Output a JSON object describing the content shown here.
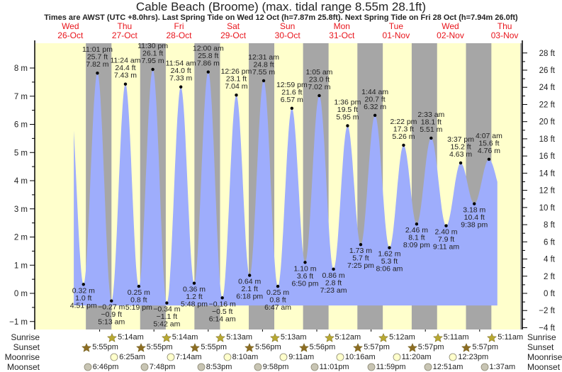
{
  "header": {
    "title": "Cable Beach (Broome) (max. tidal range 8.55m 28.1ft)",
    "subtitle": "Times are AWST (UTC +8.0hrs). Last Spring Tide on Wed 12 Oct (h=7.87m 25.8ft). Next Spring Tide on Fri 28 Oct (h=7.94m 26.0ft)"
  },
  "days": [
    {
      "dow": "Wed",
      "date": "26-Oct"
    },
    {
      "dow": "Thu",
      "date": "27-Oct"
    },
    {
      "dow": "Fri",
      "date": "28-Oct"
    },
    {
      "dow": "Sat",
      "date": "29-Oct"
    },
    {
      "dow": "Sun",
      "date": "30-Oct"
    },
    {
      "dow": "Mon",
      "date": "31-Oct"
    },
    {
      "dow": "Tue",
      "date": "01-Nov"
    },
    {
      "dow": "Wed",
      "date": "02-Nov"
    },
    {
      "dow": "Thu",
      "date": "03-Nov"
    }
  ],
  "colors": {
    "day": "#ffffcc",
    "night": "#a6a6a6",
    "water": "#9eadfc",
    "day_label": "#e8141b",
    "sunrise": "#b7a832",
    "sunset": "#8c6d23",
    "moonrise": "#ffffcc",
    "moonset": "#c8c5b4"
  },
  "chart_data": {
    "type": "area",
    "title": "Cable Beach (Broome) (max. tidal range 8.55m 28.1ft)",
    "ylabel_left": "m",
    "ylabel_right": "ft",
    "ylim_m": [
      -1.3,
      8.9
    ],
    "yticks_m": [
      "-1 m",
      "0 m",
      "1 m",
      "2 m",
      "3 m",
      "4 m",
      "5 m",
      "6 m",
      "7 m",
      "8 m"
    ],
    "yticks_ft": [
      "-4 ft",
      "-2 ft",
      "0 ft",
      "2 ft",
      "4 ft",
      "6 ft",
      "8 ft",
      "10 ft",
      "12 ft",
      "14 ft",
      "16 ft",
      "18 ft",
      "20 ft",
      "22 ft",
      "24 ft",
      "26 ft",
      "28 ft"
    ],
    "grid": false,
    "extremes": [
      {
        "day": 0,
        "time": "4:51 pm",
        "m": "0.32 m",
        "ft": "1.0 ft",
        "h": 0.32,
        "t": 0.7021,
        "type": "low"
      },
      {
        "day": 0,
        "time": "11:01 pm",
        "m": "7.82 m",
        "ft": "25.7 ft",
        "h": 7.82,
        "t": 0.959,
        "type": "high"
      },
      {
        "day": 1,
        "time": "5:13 am",
        "m": "-0.27 m",
        "ft": "-0.9 ft",
        "h": -0.27,
        "t": 1.2174,
        "type": "low"
      },
      {
        "day": 1,
        "time": "11:24 am",
        "m": "7.43 m",
        "ft": "24.4 ft",
        "h": 7.43,
        "t": 1.475,
        "type": "high"
      },
      {
        "day": 1,
        "time": "5:19 pm",
        "m": "0.25 m",
        "ft": "0.8 ft",
        "h": 0.25,
        "t": 1.7215,
        "type": "low"
      },
      {
        "day": 1,
        "time": "11:30 pm",
        "m": "7.95 m",
        "ft": "26.1 ft",
        "h": 7.95,
        "t": 1.9792,
        "type": "high"
      },
      {
        "day": 2,
        "time": "5:42 am",
        "m": "-0.34 m",
        "ft": "-1.1 ft",
        "h": -0.34,
        "t": 2.2375,
        "type": "low"
      },
      {
        "day": 2,
        "time": "11:54 am",
        "m": "7.33 m",
        "ft": "24.0 ft",
        "h": 7.33,
        "t": 2.4958,
        "type": "high"
      },
      {
        "day": 2,
        "time": "5:48 pm",
        "m": "0.36 m",
        "ft": "1.2 ft",
        "h": 0.36,
        "t": 2.7417,
        "type": "low"
      },
      {
        "day": 3,
        "time": "12:00 am",
        "m": "7.86 m",
        "ft": "25.8 ft",
        "h": 7.86,
        "t": 3.0,
        "type": "high"
      },
      {
        "day": 3,
        "time": "6:14 am",
        "m": "-0.16 m",
        "ft": "-0.5 ft",
        "h": -0.16,
        "t": 3.2597,
        "type": "low"
      },
      {
        "day": 3,
        "time": "12:26 pm",
        "m": "7.04 m",
        "ft": "23.1 ft",
        "h": 7.04,
        "t": 3.5181,
        "type": "high"
      },
      {
        "day": 3,
        "time": "6:18 pm",
        "m": "0.64 m",
        "ft": "2.1 ft",
        "h": 0.64,
        "t": 3.7625,
        "type": "low"
      },
      {
        "day": 4,
        "time": "12:31 am",
        "m": "7.55 m",
        "ft": "24.8 ft",
        "h": 7.55,
        "t": 4.0215,
        "type": "high"
      },
      {
        "day": 4,
        "time": "6:47 am",
        "m": "0.25 m",
        "ft": "0.8 ft",
        "h": 0.25,
        "t": 4.2826,
        "type": "low"
      },
      {
        "day": 4,
        "time": "12:59 pm",
        "m": "6.57 m",
        "ft": "21.6 ft",
        "h": 6.57,
        "t": 4.541,
        "type": "high"
      },
      {
        "day": 4,
        "time": "6:50 pm",
        "m": "1.10 m",
        "ft": "3.6 ft",
        "h": 1.1,
        "t": 4.7847,
        "type": "low"
      },
      {
        "day": 5,
        "time": "1:05 am",
        "m": "7.02 m",
        "ft": "23.0 ft",
        "h": 7.02,
        "t": 5.0451,
        "type": "high"
      },
      {
        "day": 5,
        "time": "7:23 am",
        "m": "0.86 m",
        "ft": "2.8 ft",
        "h": 0.86,
        "t": 5.3076,
        "type": "low"
      },
      {
        "day": 5,
        "time": "1:36 pm",
        "m": "5.95 m",
        "ft": "19.5 ft",
        "h": 5.95,
        "t": 5.5667,
        "type": "high"
      },
      {
        "day": 5,
        "time": "7:25 pm",
        "m": "1.73 m",
        "ft": "5.7 ft",
        "h": 1.73,
        "t": 5.809,
        "type": "low"
      },
      {
        "day": 6,
        "time": "1:44 am",
        "m": "6.32 m",
        "ft": "20.7 ft",
        "h": 6.32,
        "t": 6.0722,
        "type": "high"
      },
      {
        "day": 6,
        "time": "8:06 am",
        "m": "1.62 m",
        "ft": "5.3 ft",
        "h": 1.62,
        "t": 6.3375,
        "type": "low"
      },
      {
        "day": 6,
        "time": "2:22 pm",
        "m": "5.26 m",
        "ft": "17.3 ft",
        "h": 5.26,
        "t": 6.5986,
        "type": "high"
      },
      {
        "day": 6,
        "time": "8:09 pm",
        "m": "2.46 m",
        "ft": "8.1 ft",
        "h": 2.46,
        "t": 6.8396,
        "type": "low"
      },
      {
        "day": 7,
        "time": "2:33 am",
        "m": "5.51 m",
        "ft": "18.1 ft",
        "h": 5.51,
        "t": 7.1063,
        "type": "high"
      },
      {
        "day": 7,
        "time": "9:11 am",
        "m": "2.40 m",
        "ft": "7.9 ft",
        "h": 2.4,
        "t": 7.3826,
        "type": "low"
      },
      {
        "day": 7,
        "time": "3:37 pm",
        "m": "4.63 m",
        "ft": "15.2 ft",
        "h": 4.63,
        "t": 7.6507,
        "type": "high"
      },
      {
        "day": 7,
        "time": "9:38 pm",
        "m": "3.18 m",
        "ft": "10.4 ft",
        "h": 3.18,
        "t": 7.9014,
        "type": "low"
      },
      {
        "day": 8,
        "time": "4:07 am",
        "m": "4.76 m",
        "ft": "15.6 ft",
        "h": 4.76,
        "t": 8.1715,
        "type": "high"
      }
    ]
  },
  "sun_moon": {
    "labels": {
      "sunrise": "Sunrise",
      "sunset": "Sunset",
      "moonrise": "Moonrise",
      "moonset": "Moonset"
    },
    "sunrise": [
      "5:14am",
      "5:14am",
      "5:13am",
      "5:13am",
      "5:12am",
      "5:12am",
      "5:11am",
      "5:11am"
    ],
    "sunset": [
      "5:55pm",
      "5:55pm",
      "5:55pm",
      "5:56pm",
      "5:56pm",
      "5:57pm",
      "5:57pm",
      "5:57pm"
    ],
    "moonrise": [
      "6:25am",
      "7:14am",
      "8:10am",
      "9:11am",
      "10:16am",
      "11:20am",
      "12:23pm"
    ],
    "moonset": [
      "6:46pm",
      "7:48pm",
      "8:53pm",
      "9:58pm",
      "11:01pm",
      "11:59pm",
      "12:51am",
      "1:37am"
    ]
  }
}
